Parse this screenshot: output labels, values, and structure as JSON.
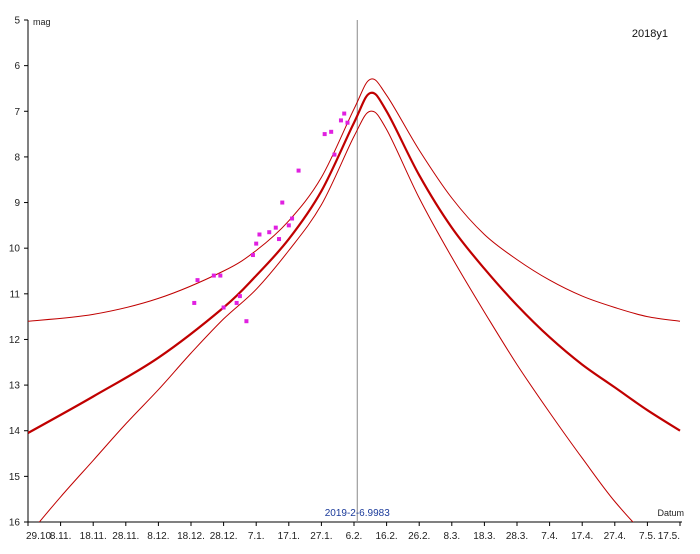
{
  "chart_data": {
    "type": "line",
    "title": "2018y1",
    "ylabel": "mag",
    "xlabel": "Datum",
    "y_inverted": true,
    "ylim": [
      5,
      16
    ],
    "yticks": [
      5,
      6,
      7,
      8,
      9,
      10,
      11,
      12,
      13,
      14,
      15,
      16
    ],
    "x_start": "2018-10-29",
    "x_end": "2019-05-17",
    "xticks": [
      {
        "label": "29.10.",
        "date": "2018-10-29"
      },
      {
        "label": "8.11.",
        "date": "2018-11-08"
      },
      {
        "label": "18.11.",
        "date": "2018-11-18"
      },
      {
        "label": "28.11.",
        "date": "2018-11-28"
      },
      {
        "label": "8.12.",
        "date": "2018-12-08"
      },
      {
        "label": "18.12.",
        "date": "2018-12-18"
      },
      {
        "label": "28.12.",
        "date": "2018-12-28"
      },
      {
        "label": "7.1.",
        "date": "2019-01-07"
      },
      {
        "label": "17.1.",
        "date": "2019-01-17"
      },
      {
        "label": "27.1.",
        "date": "2019-01-27"
      },
      {
        "label": "6.2.",
        "date": "2019-02-06"
      },
      {
        "label": "16.2.",
        "date": "2019-02-16"
      },
      {
        "label": "26.2.",
        "date": "2019-02-26"
      },
      {
        "label": "8.3.",
        "date": "2019-03-08"
      },
      {
        "label": "18.3.",
        "date": "2019-03-18"
      },
      {
        "label": "28.3.",
        "date": "2019-03-28"
      },
      {
        "label": "7.4.",
        "date": "2019-04-07"
      },
      {
        "label": "17.4.",
        "date": "2019-04-17"
      },
      {
        "label": "27.4.",
        "date": "2019-04-27"
      },
      {
        "label": "7.5.",
        "date": "2019-05-07"
      },
      {
        "label": "17.5.",
        "date": "2019-05-17"
      }
    ],
    "current_date_label": "2019-2-6.9983",
    "current_date": "2019-02-07",
    "series": [
      {
        "style": "bold",
        "color": "#c00000",
        "x": [
          "2018-10-29",
          "2018-11-18",
          "2018-12-08",
          "2018-12-28",
          "2019-01-07",
          "2019-01-17",
          "2019-01-27",
          "2019-02-06",
          "2019-02-11",
          "2019-02-16",
          "2019-02-26",
          "2019-03-08",
          "2019-03-18",
          "2019-03-28",
          "2019-04-07",
          "2019-04-17",
          "2019-04-27",
          "2019-05-07",
          "2019-05-17"
        ],
        "y": [
          14.05,
          13.25,
          12.4,
          11.3,
          10.6,
          9.8,
          8.75,
          7.25,
          6.6,
          7.0,
          8.4,
          9.55,
          10.45,
          11.25,
          11.95,
          12.55,
          13.05,
          13.55,
          14.0
        ]
      },
      {
        "style": "thin",
        "color": "#c00000",
        "x": [
          "2018-10-29",
          "2018-11-18",
          "2018-12-08",
          "2018-12-28",
          "2019-01-07",
          "2019-01-17",
          "2019-01-27",
          "2019-02-06",
          "2019-02-11",
          "2019-02-16",
          "2019-02-26",
          "2019-03-08",
          "2019-03-18",
          "2019-03-28",
          "2019-04-07",
          "2019-04-17",
          "2019-04-27",
          "2019-05-07",
          "2019-05-17"
        ],
        "y": [
          11.6,
          11.45,
          11.1,
          10.5,
          10.05,
          9.4,
          8.45,
          6.95,
          6.3,
          6.65,
          7.85,
          8.9,
          9.7,
          10.25,
          10.7,
          11.05,
          11.3,
          11.5,
          11.6
        ]
      },
      {
        "style": "thin",
        "color": "#c00000",
        "x": [
          "2018-10-29",
          "2018-11-08",
          "2018-11-18",
          "2018-11-28",
          "2018-12-08",
          "2018-12-18",
          "2018-12-28",
          "2019-01-07",
          "2019-01-17",
          "2019-01-27",
          "2019-02-06",
          "2019-02-11",
          "2019-02-16",
          "2019-02-26",
          "2019-03-08",
          "2019-03-18",
          "2019-03-28",
          "2019-04-07",
          "2019-04-17",
          "2019-04-27",
          "2019-05-07",
          "2019-05-14"
        ],
        "y": [
          16.3,
          15.45,
          14.65,
          13.85,
          13.1,
          12.3,
          11.55,
          10.9,
          10.05,
          9.05,
          7.55,
          7.0,
          7.4,
          8.9,
          10.2,
          11.4,
          12.55,
          13.6,
          14.6,
          15.55,
          16.3,
          16.5
        ]
      }
    ],
    "observations": {
      "color": "#e020e0",
      "x": [
        "2018-12-19",
        "2018-12-20",
        "2018-12-25",
        "2018-12-27",
        "2018-12-28",
        "2019-01-01",
        "2019-01-02",
        "2019-01-04",
        "2019-01-06",
        "2019-01-07",
        "2019-01-08",
        "2019-01-11",
        "2019-01-13",
        "2019-01-14",
        "2019-01-15",
        "2019-01-17",
        "2019-01-18",
        "2019-01-20",
        "2019-01-28",
        "2019-01-30",
        "2019-01-31",
        "2019-02-02",
        "2019-02-03",
        "2019-02-04"
      ],
      "y": [
        11.2,
        10.7,
        10.6,
        10.6,
        11.3,
        11.2,
        11.05,
        11.6,
        10.15,
        9.9,
        9.7,
        9.65,
        9.55,
        9.8,
        9.0,
        9.5,
        9.35,
        8.3,
        7.5,
        7.45,
        7.95,
        7.2,
        7.05,
        7.25
      ]
    }
  }
}
